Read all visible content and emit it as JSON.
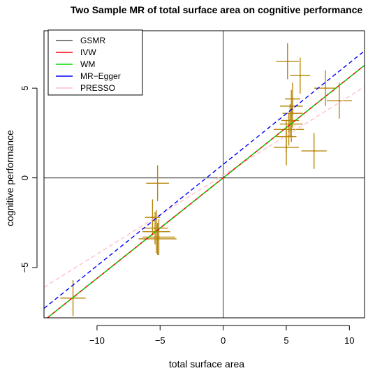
{
  "chart_data": {
    "type": "scatter",
    "title": "Two Sample MR of total surface area  on  cognitive performance",
    "xlabel": "total surface area",
    "ylabel": "cognitive performance",
    "xlim": [
      -14.2,
      11.2
    ],
    "ylim": [
      -7.8,
      8.2
    ],
    "xticks": [
      -10,
      -5,
      0,
      5,
      10
    ],
    "yticks": [
      -5,
      0,
      5
    ],
    "reference_lines": {
      "x": 0,
      "y": 0
    },
    "legend_position": "top-left",
    "points": [
      {
        "x": -11.9,
        "y": -6.7,
        "xerr": 1.0,
        "yerr": 1.0
      },
      {
        "x": -5.2,
        "y": -0.3,
        "xerr": 0.9,
        "yerr": 1.0
      },
      {
        "x": -5.6,
        "y": -2.2,
        "xerr": 0.6,
        "yerr": 1.0
      },
      {
        "x": -5.4,
        "y": -2.8,
        "xerr": 1.0,
        "yerr": 0.9
      },
      {
        "x": -5.3,
        "y": -3.0,
        "xerr": 1.1,
        "yerr": 1.2
      },
      {
        "x": -5.1,
        "y": -3.3,
        "xerr": 1.3,
        "yerr": 1.0
      },
      {
        "x": -5.2,
        "y": -3.4,
        "xerr": 1.5,
        "yerr": 0.9
      },
      {
        "x": 5.1,
        "y": 6.5,
        "xerr": 0.9,
        "yerr": 1.0
      },
      {
        "x": 6.1,
        "y": 5.7,
        "xerr": 0.8,
        "yerr": 1.0
      },
      {
        "x": 8.1,
        "y": 5.0,
        "xerr": 0.9,
        "yerr": 1.0
      },
      {
        "x": 9.2,
        "y": 4.3,
        "xerr": 1.0,
        "yerr": 1.0
      },
      {
        "x": 5.5,
        "y": 4.4,
        "xerr": 0.6,
        "yerr": 0.9
      },
      {
        "x": 5.4,
        "y": 4.0,
        "xerr": 0.9,
        "yerr": 0.9
      },
      {
        "x": 5.5,
        "y": 3.6,
        "xerr": 0.8,
        "yerr": 0.8
      },
      {
        "x": 5.3,
        "y": 3.2,
        "xerr": 0.7,
        "yerr": 0.9
      },
      {
        "x": 5.4,
        "y": 3.0,
        "xerr": 0.9,
        "yerr": 1.0
      },
      {
        "x": 5.2,
        "y": 2.7,
        "xerr": 1.2,
        "yerr": 0.9
      },
      {
        "x": 5.0,
        "y": 2.3,
        "xerr": 0.8,
        "yerr": 0.9
      },
      {
        "x": 5.0,
        "y": 1.7,
        "xerr": 1.0,
        "yerr": 1.0
      },
      {
        "x": 7.2,
        "y": 1.5,
        "xerr": 1.0,
        "yerr": 1.0
      }
    ],
    "point_color": "#b8860b",
    "series": [
      {
        "name": "GSMR",
        "color": "#555555",
        "style": "solid",
        "intercept": 0.0,
        "slope": 0.56
      },
      {
        "name": "IVW",
        "color": "#ff0000",
        "style": "solid",
        "intercept": 0.0,
        "slope": 0.56
      },
      {
        "name": "WM",
        "color": "#00dd00",
        "style": "dashed",
        "intercept": 0.0,
        "slope": 0.56
      },
      {
        "name": "MR−Egger",
        "color": "#0000ff",
        "style": "dashed",
        "intercept": 0.75,
        "slope": 0.565
      },
      {
        "name": "PRESSO",
        "color": "#ffc0cb",
        "style": "dashed",
        "intercept": 0.15,
        "slope": 0.44
      }
    ]
  }
}
